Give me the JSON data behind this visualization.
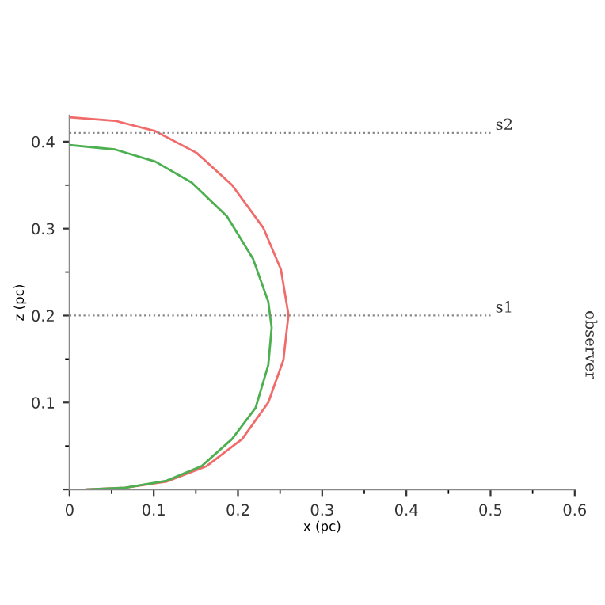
{
  "chart_data": {
    "type": "line",
    "xlabel": "x (pc)",
    "ylabel": "z (pc)",
    "xlim": [
      0,
      0.6
    ],
    "ylim": [
      0,
      0.43
    ],
    "xticks": [
      0,
      0.1,
      0.2,
      0.3,
      0.4,
      0.5,
      0.6
    ],
    "yticks": [
      {
        "value": 0,
        "label": null
      },
      0.1,
      0.2,
      0.3,
      0.4
    ],
    "grid": false,
    "legend": false,
    "marker": "none",
    "line_style": "solid",
    "series": [
      {
        "color": "#f26b6b",
        "x": [
          0,
          0.054,
          0.102,
          0.151,
          0.193,
          0.23,
          0.251,
          0.26,
          0.254,
          0.236,
          0.205,
          0.163,
          0.115,
          0.066,
          0.02
        ],
        "values": [
          0.428,
          0.424,
          0.412,
          0.387,
          0.35,
          0.301,
          0.253,
          0.201,
          0.149,
          0.1,
          0.058,
          0.027,
          0.009,
          0.002,
          0
        ]
      },
      {
        "color": "#4caf50",
        "x": [
          0,
          0.054,
          0.102,
          0.145,
          0.187,
          0.218,
          0.236,
          0.24,
          0.236,
          0.221,
          0.193,
          0.157,
          0.115,
          0.066,
          0.02
        ],
        "values": [
          0.396,
          0.391,
          0.377,
          0.353,
          0.314,
          0.265,
          0.216,
          0.186,
          0.143,
          0.094,
          0.058,
          0.027,
          0.01,
          0.002,
          0
        ]
      },
      {
        "name": "s2",
        "color": "#888888",
        "line_style": "dotted",
        "x": [
          0,
          0.5
        ],
        "values": [
          0.41,
          0.41
        ]
      },
      {
        "name": "s1",
        "color": "#888888",
        "line_style": "dotted",
        "x": [
          0,
          0.5
        ],
        "values": [
          0.2,
          0.2
        ]
      }
    ],
    "annotations": [
      "observer"
    ]
  }
}
